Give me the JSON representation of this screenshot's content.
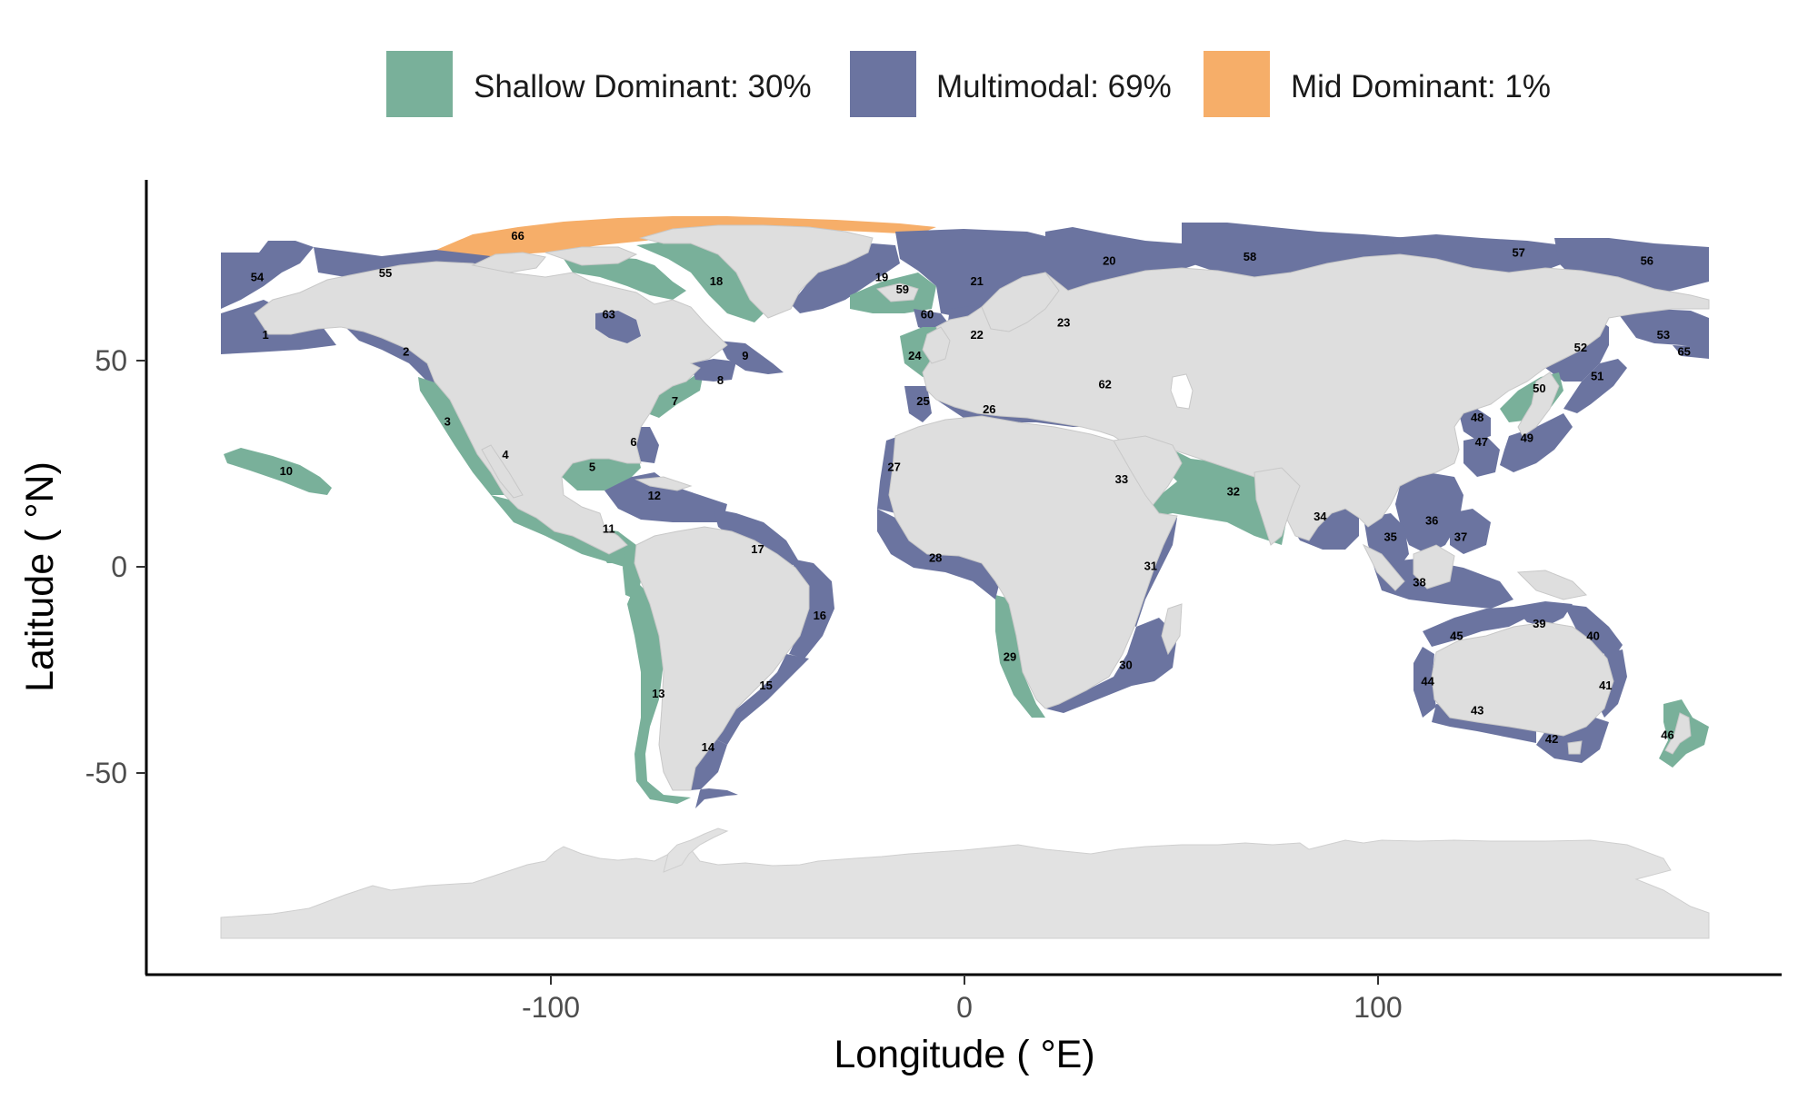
{
  "legend": {
    "items": [
      {
        "label": "Shallow Dominant: 30%",
        "color": "#79b09a"
      },
      {
        "label": "Multimodal: 69%",
        "color": "#6b74a0"
      },
      {
        "label": "Mid Dominant: 1%",
        "color": "#f6ae69"
      }
    ]
  },
  "axes": {
    "xlabel": "Longitude ( °E)",
    "ylabel": "Latitude ( °N)",
    "xticks": [
      "-100",
      "0",
      "100"
    ],
    "yticks": [
      "50",
      "0",
      "-50"
    ]
  },
  "colors": {
    "land": "#dedede",
    "shallow": "#79b09a",
    "multimodal": "#6b74a0",
    "mid": "#f6ae69"
  },
  "regions": [
    {
      "id": "1",
      "class": "multimodal",
      "lon": -169,
      "lat": 56
    },
    {
      "id": "2",
      "class": "multimodal",
      "lon": -135,
      "lat": 52
    },
    {
      "id": "3",
      "class": "shallow",
      "lon": -125,
      "lat": 35
    },
    {
      "id": "4",
      "class": "shallow",
      "lon": -111,
      "lat": 27
    },
    {
      "id": "5",
      "class": "shallow",
      "lon": -90,
      "lat": 24
    },
    {
      "id": "6",
      "class": "multimodal",
      "lon": -80,
      "lat": 30
    },
    {
      "id": "7",
      "class": "shallow",
      "lon": -70,
      "lat": 40
    },
    {
      "id": "8",
      "class": "multimodal",
      "lon": -59,
      "lat": 45
    },
    {
      "id": "9",
      "class": "multimodal",
      "lon": -53,
      "lat": 51
    },
    {
      "id": "10",
      "class": "shallow",
      "lon": -164,
      "lat": 23
    },
    {
      "id": "11",
      "class": "shallow",
      "lon": -86,
      "lat": 9
    },
    {
      "id": "12",
      "class": "multimodal",
      "lon": -75,
      "lat": 17
    },
    {
      "id": "13",
      "class": "shallow",
      "lon": -74,
      "lat": -31
    },
    {
      "id": "14",
      "class": "multimodal",
      "lon": -62,
      "lat": -44
    },
    {
      "id": "15",
      "class": "multimodal",
      "lon": -48,
      "lat": -29
    },
    {
      "id": "16",
      "class": "multimodal",
      "lon": -35,
      "lat": -12
    },
    {
      "id": "17",
      "class": "multimodal",
      "lon": -50,
      "lat": 4
    },
    {
      "id": "18",
      "class": "shallow",
      "lon": -60,
      "lat": 69
    },
    {
      "id": "19",
      "class": "multimodal",
      "lon": -20,
      "lat": 70
    },
    {
      "id": "20",
      "class": "multimodal",
      "lon": 35,
      "lat": 74
    },
    {
      "id": "21",
      "class": "multimodal",
      "lon": 3,
      "lat": 69
    },
    {
      "id": "22",
      "class": "multimodal",
      "lon": 3,
      "lat": 56
    },
    {
      "id": "23",
      "class": "shallow",
      "lon": 24,
      "lat": 59
    },
    {
      "id": "24",
      "class": "shallow",
      "lon": -12,
      "lat": 51
    },
    {
      "id": "25",
      "class": "multimodal",
      "lon": -10,
      "lat": 40
    },
    {
      "id": "26",
      "class": "multimodal",
      "lon": 6,
      "lat": 38
    },
    {
      "id": "27",
      "class": "multimodal",
      "lon": -17,
      "lat": 24
    },
    {
      "id": "28",
      "class": "multimodal",
      "lon": -7,
      "lat": 2
    },
    {
      "id": "29",
      "class": "shallow",
      "lon": 11,
      "lat": -22
    },
    {
      "id": "30",
      "class": "multimodal",
      "lon": 39,
      "lat": -24
    },
    {
      "id": "31",
      "class": "multimodal",
      "lon": 45,
      "lat": 0
    },
    {
      "id": "32",
      "class": "shallow",
      "lon": 65,
      "lat": 18
    },
    {
      "id": "33",
      "class": "multimodal",
      "lon": 38,
      "lat": 21
    },
    {
      "id": "34",
      "class": "multimodal",
      "lon": 86,
      "lat": 12
    },
    {
      "id": "35",
      "class": "multimodal",
      "lon": 103,
      "lat": 7
    },
    {
      "id": "36",
      "class": "multimodal",
      "lon": 113,
      "lat": 11
    },
    {
      "id": "37",
      "class": "multimodal",
      "lon": 120,
      "lat": 7
    },
    {
      "id": "38",
      "class": "multimodal",
      "lon": 110,
      "lat": -4
    },
    {
      "id": "39",
      "class": "multimodal",
      "lon": 139,
      "lat": -14
    },
    {
      "id": "40",
      "class": "multimodal",
      "lon": 152,
      "lat": -17
    },
    {
      "id": "41",
      "class": "multimodal",
      "lon": 155,
      "lat": -29
    },
    {
      "id": "42",
      "class": "multimodal",
      "lon": 142,
      "lat": -42
    },
    {
      "id": "43",
      "class": "multimodal",
      "lon": 124,
      "lat": -35
    },
    {
      "id": "44",
      "class": "multimodal",
      "lon": 112,
      "lat": -28
    },
    {
      "id": "45",
      "class": "multimodal",
      "lon": 119,
      "lat": -17
    },
    {
      "id": "46",
      "class": "shallow",
      "lon": 170,
      "lat": -41
    },
    {
      "id": "47",
      "class": "multimodal",
      "lon": 125,
      "lat": 30
    },
    {
      "id": "48",
      "class": "multimodal",
      "lon": 124,
      "lat": 36
    },
    {
      "id": "49",
      "class": "multimodal",
      "lon": 136,
      "lat": 31
    },
    {
      "id": "50",
      "class": "shallow",
      "lon": 139,
      "lat": 43
    },
    {
      "id": "51",
      "class": "multimodal",
      "lon": 153,
      "lat": 46
    },
    {
      "id": "52",
      "class": "multimodal",
      "lon": 149,
      "lat": 53
    },
    {
      "id": "53",
      "class": "multimodal",
      "lon": 169,
      "lat": 56
    },
    {
      "id": "54",
      "class": "multimodal",
      "lon": -171,
      "lat": 70
    },
    {
      "id": "55",
      "class": "multimodal",
      "lon": -140,
      "lat": 71
    },
    {
      "id": "56",
      "class": "multimodal",
      "lon": 165,
      "lat": 74
    },
    {
      "id": "57",
      "class": "multimodal",
      "lon": 134,
      "lat": 76
    },
    {
      "id": "58",
      "class": "multimodal",
      "lon": 69,
      "lat": 75
    },
    {
      "id": "59",
      "class": "shallow",
      "lon": -15,
      "lat": 67
    },
    {
      "id": "60",
      "class": "multimodal",
      "lon": -9,
      "lat": 61
    },
    {
      "id": "62",
      "class": "multimodal",
      "lon": 34,
      "lat": 44
    },
    {
      "id": "63",
      "class": "multimodal",
      "lon": -86,
      "lat": 61
    },
    {
      "id": "65",
      "class": "multimodal",
      "lon": 174,
      "lat": 52
    },
    {
      "id": "66",
      "class": "mid",
      "lon": -108,
      "lat": 80
    }
  ]
}
